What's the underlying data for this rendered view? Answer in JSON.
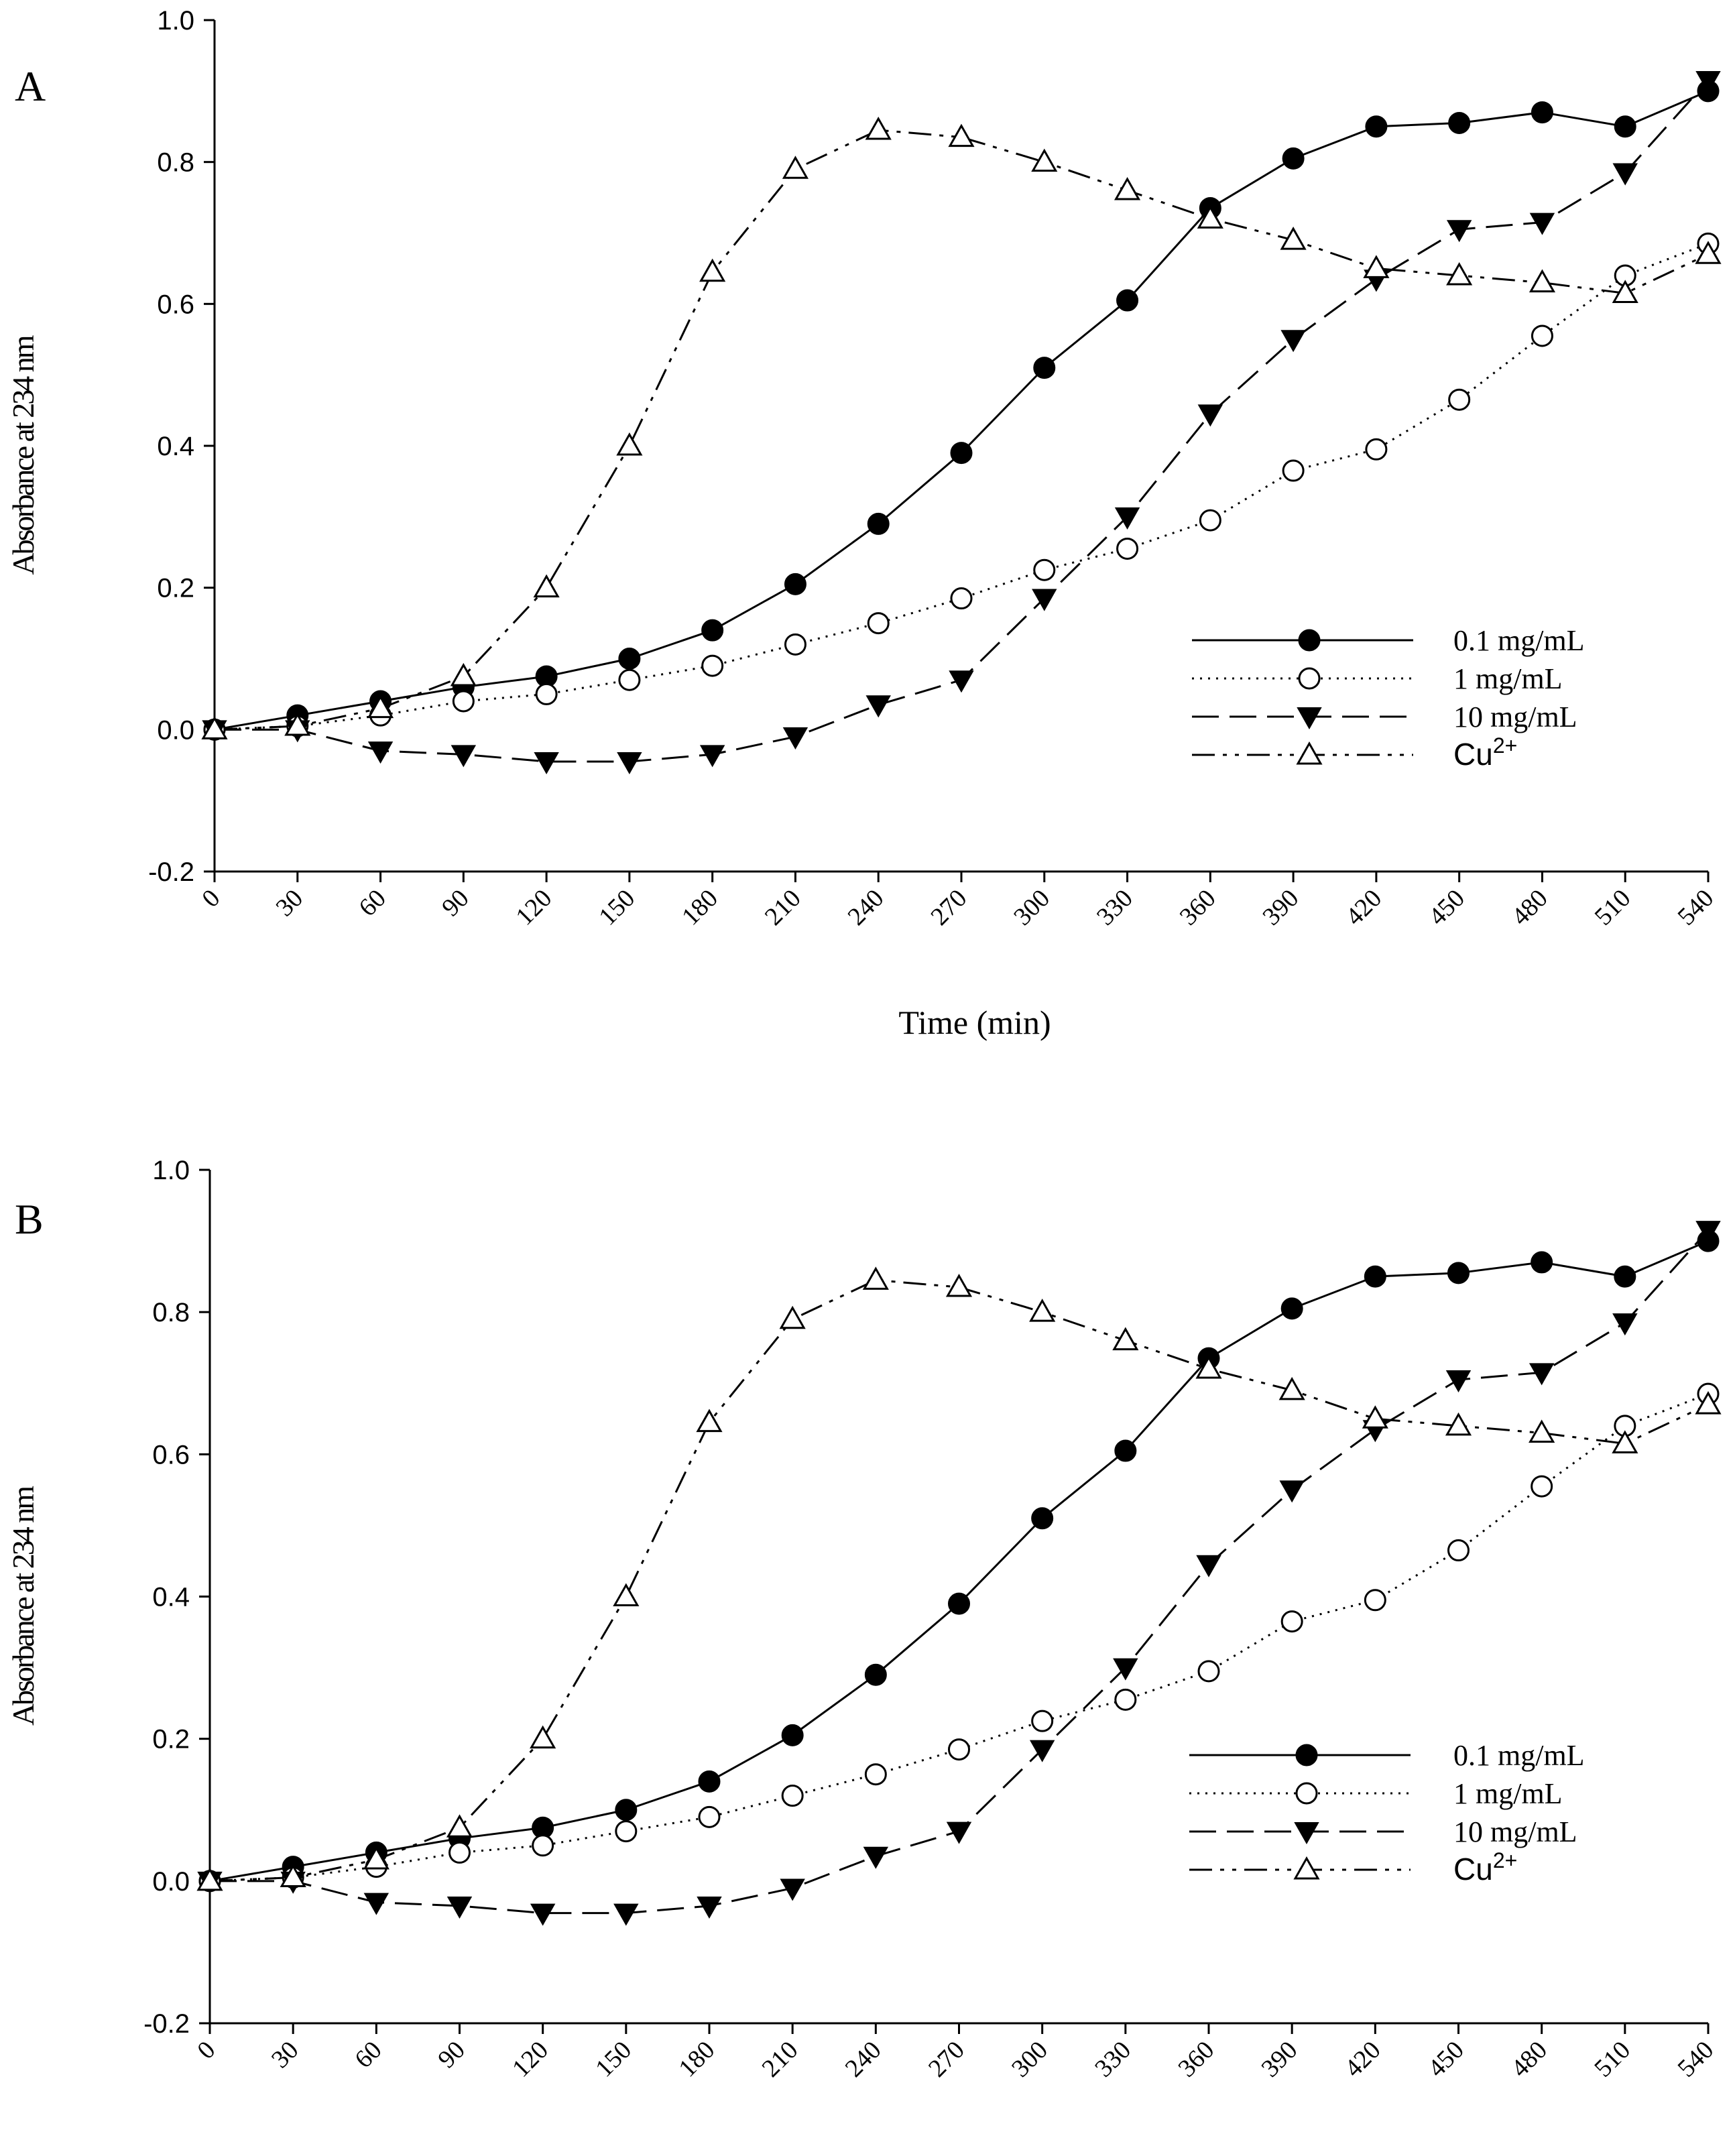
{
  "chart_data": [
    {
      "type": "line",
      "panel": "A",
      "xlabel": "Time (min)",
      "ylabel": "Absorbance at 234 nm",
      "ylim": [
        -0.2,
        1.0
      ],
      "yticks": [
        "-0.2",
        "0.0",
        "0.2",
        "0.4",
        "0.6",
        "0.8",
        "1.0"
      ],
      "x": [
        0,
        30,
        60,
        90,
        120,
        150,
        180,
        210,
        240,
        270,
        300,
        330,
        360,
        390,
        420,
        450,
        480,
        510,
        540
      ],
      "xticks": [
        "0",
        "30",
        "60",
        "90",
        "120",
        "150",
        "180",
        "210",
        "240",
        "270",
        "300",
        "330",
        "360",
        "390",
        "420",
        "450",
        "480",
        "510",
        "540"
      ],
      "legend_position": "lower-right",
      "grid": false,
      "series": [
        {
          "name": "0.1 mg/mL",
          "marker": "filled-circle",
          "dash": "solid",
          "values": [
            0.0,
            0.02,
            0.04,
            0.06,
            0.075,
            0.1,
            0.14,
            0.205,
            0.29,
            0.39,
            0.51,
            0.605,
            0.735,
            0.805,
            0.85,
            0.855,
            0.87,
            0.85,
            0.9
          ]
        },
        {
          "name": "1 mg/mL",
          "marker": "open-circle",
          "dash": "dotted",
          "values": [
            0.0,
            0.005,
            0.02,
            0.04,
            0.05,
            0.07,
            0.09,
            0.12,
            0.15,
            0.185,
            0.225,
            0.255,
            0.295,
            0.365,
            0.395,
            0.465,
            0.555,
            0.64,
            0.685
          ]
        },
        {
          "name": "10 mg/mL",
          "marker": "filled-triangle-down",
          "dash": "dashed",
          "values": [
            0.0,
            0.0,
            -0.03,
            -0.035,
            -0.045,
            -0.045,
            -0.035,
            -0.01,
            0.035,
            0.07,
            0.185,
            0.3,
            0.445,
            0.55,
            0.635,
            0.705,
            0.715,
            0.785,
            0.915
          ]
        },
        {
          "name": "Cu",
          "name_superscript": "2+",
          "marker": "open-triangle-up",
          "dash": "dash-dot-dot",
          "values": [
            0.0,
            0.005,
            0.03,
            0.075,
            0.2,
            0.4,
            0.645,
            0.79,
            0.845,
            0.835,
            0.8,
            0.76,
            0.72,
            0.69,
            0.65,
            0.64,
            0.63,
            0.615,
            0.67
          ]
        }
      ]
    },
    {
      "type": "line",
      "panel": "B",
      "xlabel": "Time (min)",
      "ylabel": "Absorbance at 234 nm",
      "ylim": [
        -0.2,
        1.0
      ],
      "yticks": [
        "-0.2",
        "0.0",
        "0.2",
        "0.4",
        "0.6",
        "0.8",
        "1.0"
      ],
      "x": [
        0,
        30,
        60,
        90,
        120,
        150,
        180,
        210,
        240,
        270,
        300,
        330,
        360,
        390,
        420,
        450,
        480,
        510,
        540
      ],
      "xticks": [
        "0",
        "30",
        "60",
        "90",
        "120",
        "150",
        "180",
        "210",
        "240",
        "270",
        "300",
        "330",
        "360",
        "390",
        "420",
        "450",
        "480",
        "510",
        "540"
      ],
      "legend_position": "lower-right",
      "grid": false,
      "series": [
        {
          "name": "0.1 mg/mL",
          "marker": "filled-circle",
          "dash": "solid",
          "values": [
            0.0,
            0.02,
            0.04,
            0.06,
            0.075,
            0.1,
            0.14,
            0.205,
            0.29,
            0.39,
            0.51,
            0.605,
            0.735,
            0.805,
            0.85,
            0.855,
            0.87,
            0.85,
            0.9
          ]
        },
        {
          "name": "1 mg/mL",
          "marker": "open-circle",
          "dash": "dotted",
          "values": [
            0.0,
            0.005,
            0.02,
            0.04,
            0.05,
            0.07,
            0.09,
            0.12,
            0.15,
            0.185,
            0.225,
            0.255,
            0.295,
            0.365,
            0.395,
            0.465,
            0.555,
            0.64,
            0.685
          ]
        },
        {
          "name": "10 mg/mL",
          "marker": "filled-triangle-down",
          "dash": "dashed",
          "values": [
            0.0,
            0.0,
            -0.03,
            -0.035,
            -0.045,
            -0.045,
            -0.035,
            -0.01,
            0.035,
            0.07,
            0.185,
            0.3,
            0.445,
            0.55,
            0.635,
            0.705,
            0.715,
            0.785,
            0.915
          ]
        },
        {
          "name": "Cu",
          "name_superscript": "2+",
          "marker": "open-triangle-up",
          "dash": "dash-dot-dot",
          "values": [
            0.0,
            0.005,
            0.03,
            0.075,
            0.2,
            0.4,
            0.645,
            0.79,
            0.845,
            0.835,
            0.8,
            0.76,
            0.72,
            0.69,
            0.65,
            0.64,
            0.63,
            0.615,
            0.67
          ]
        }
      ]
    }
  ]
}
